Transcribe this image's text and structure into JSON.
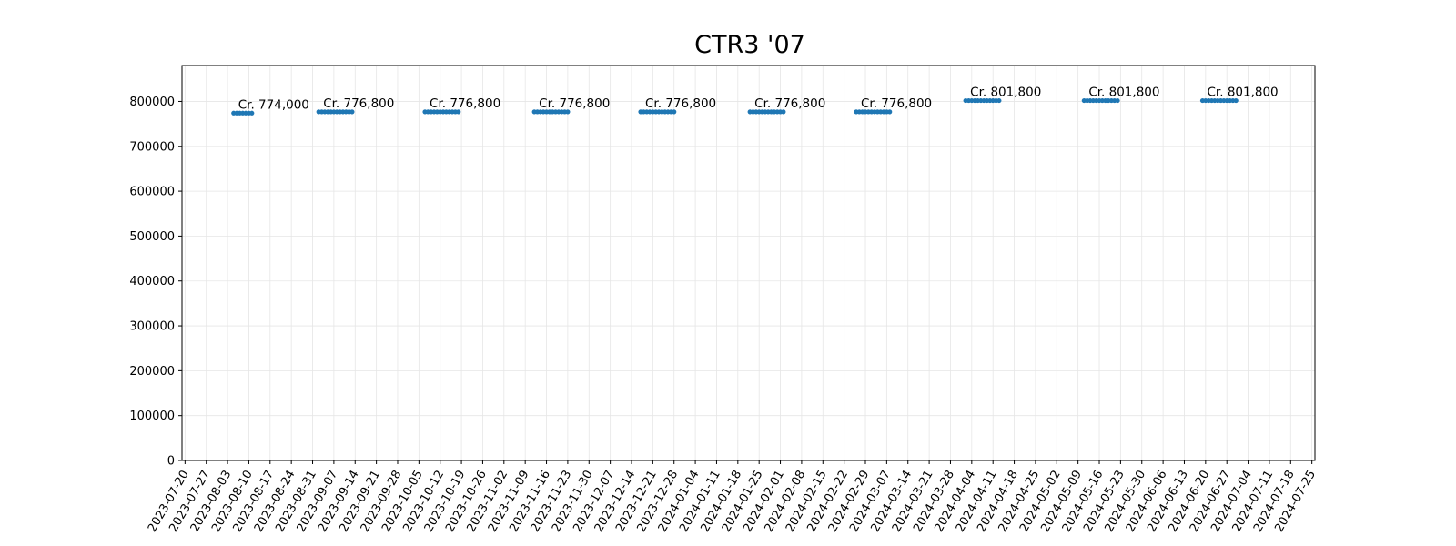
{
  "chart_data": {
    "type": "scatter",
    "title": "CTR3 '07",
    "xlabel": "",
    "ylabel": "",
    "grid": true,
    "xlim": [
      "2023-07-19",
      "2024-07-26"
    ],
    "ylim": [
      0,
      880000
    ],
    "y_ticks": [
      0,
      100000,
      200000,
      300000,
      400000,
      500000,
      600000,
      700000,
      800000
    ],
    "x_ticks": [
      "2023-07-20",
      "2023-07-27",
      "2023-08-03",
      "2023-08-10",
      "2023-08-17",
      "2023-08-24",
      "2023-08-31",
      "2023-09-07",
      "2023-09-14",
      "2023-09-21",
      "2023-09-28",
      "2023-10-05",
      "2023-10-12",
      "2023-10-19",
      "2023-10-26",
      "2023-11-02",
      "2023-11-09",
      "2023-11-16",
      "2023-11-23",
      "2023-11-30",
      "2023-12-07",
      "2023-12-14",
      "2023-12-21",
      "2023-12-28",
      "2024-01-04",
      "2024-01-11",
      "2024-01-18",
      "2024-01-25",
      "2024-02-01",
      "2024-02-08",
      "2024-02-15",
      "2024-02-22",
      "2024-02-29",
      "2024-03-07",
      "2024-03-14",
      "2024-03-21",
      "2024-03-28",
      "2024-04-04",
      "2024-04-11",
      "2024-04-18",
      "2024-04-25",
      "2024-05-02",
      "2024-05-09",
      "2024-05-16",
      "2024-05-23",
      "2024-05-30",
      "2024-06-06",
      "2024-06-13",
      "2024-06-20",
      "2024-06-27",
      "2024-07-04",
      "2024-07-11",
      "2024-07-18",
      "2024-07-25"
    ],
    "series": [
      {
        "color": "#1f77b4",
        "groups": [
          {
            "start": "2023-08-05",
            "end": "2023-08-11",
            "value": 774000,
            "label": "Cr. 774,000"
          },
          {
            "start": "2023-09-02",
            "end": "2023-09-13",
            "value": 776800,
            "label": "Cr. 776,800"
          },
          {
            "start": "2023-10-07",
            "end": "2023-10-18",
            "value": 776800,
            "label": "Cr. 776,800"
          },
          {
            "start": "2023-11-12",
            "end": "2023-11-23",
            "value": 776800,
            "label": "Cr. 776,800"
          },
          {
            "start": "2023-12-17",
            "end": "2023-12-28",
            "value": 776800,
            "label": "Cr. 776,800"
          },
          {
            "start": "2024-01-22",
            "end": "2024-02-02",
            "value": 776800,
            "label": "Cr. 776,800"
          },
          {
            "start": "2024-02-26",
            "end": "2024-03-08",
            "value": 776800,
            "label": "Cr. 776,800"
          },
          {
            "start": "2024-04-02",
            "end": "2024-04-13",
            "value": 801800,
            "label": "Cr. 801,800"
          },
          {
            "start": "2024-05-11",
            "end": "2024-05-22",
            "value": 801800,
            "label": "Cr. 801,800"
          },
          {
            "start": "2024-06-19",
            "end": "2024-06-30",
            "value": 801800,
            "label": "Cr. 801,800"
          }
        ]
      }
    ]
  }
}
